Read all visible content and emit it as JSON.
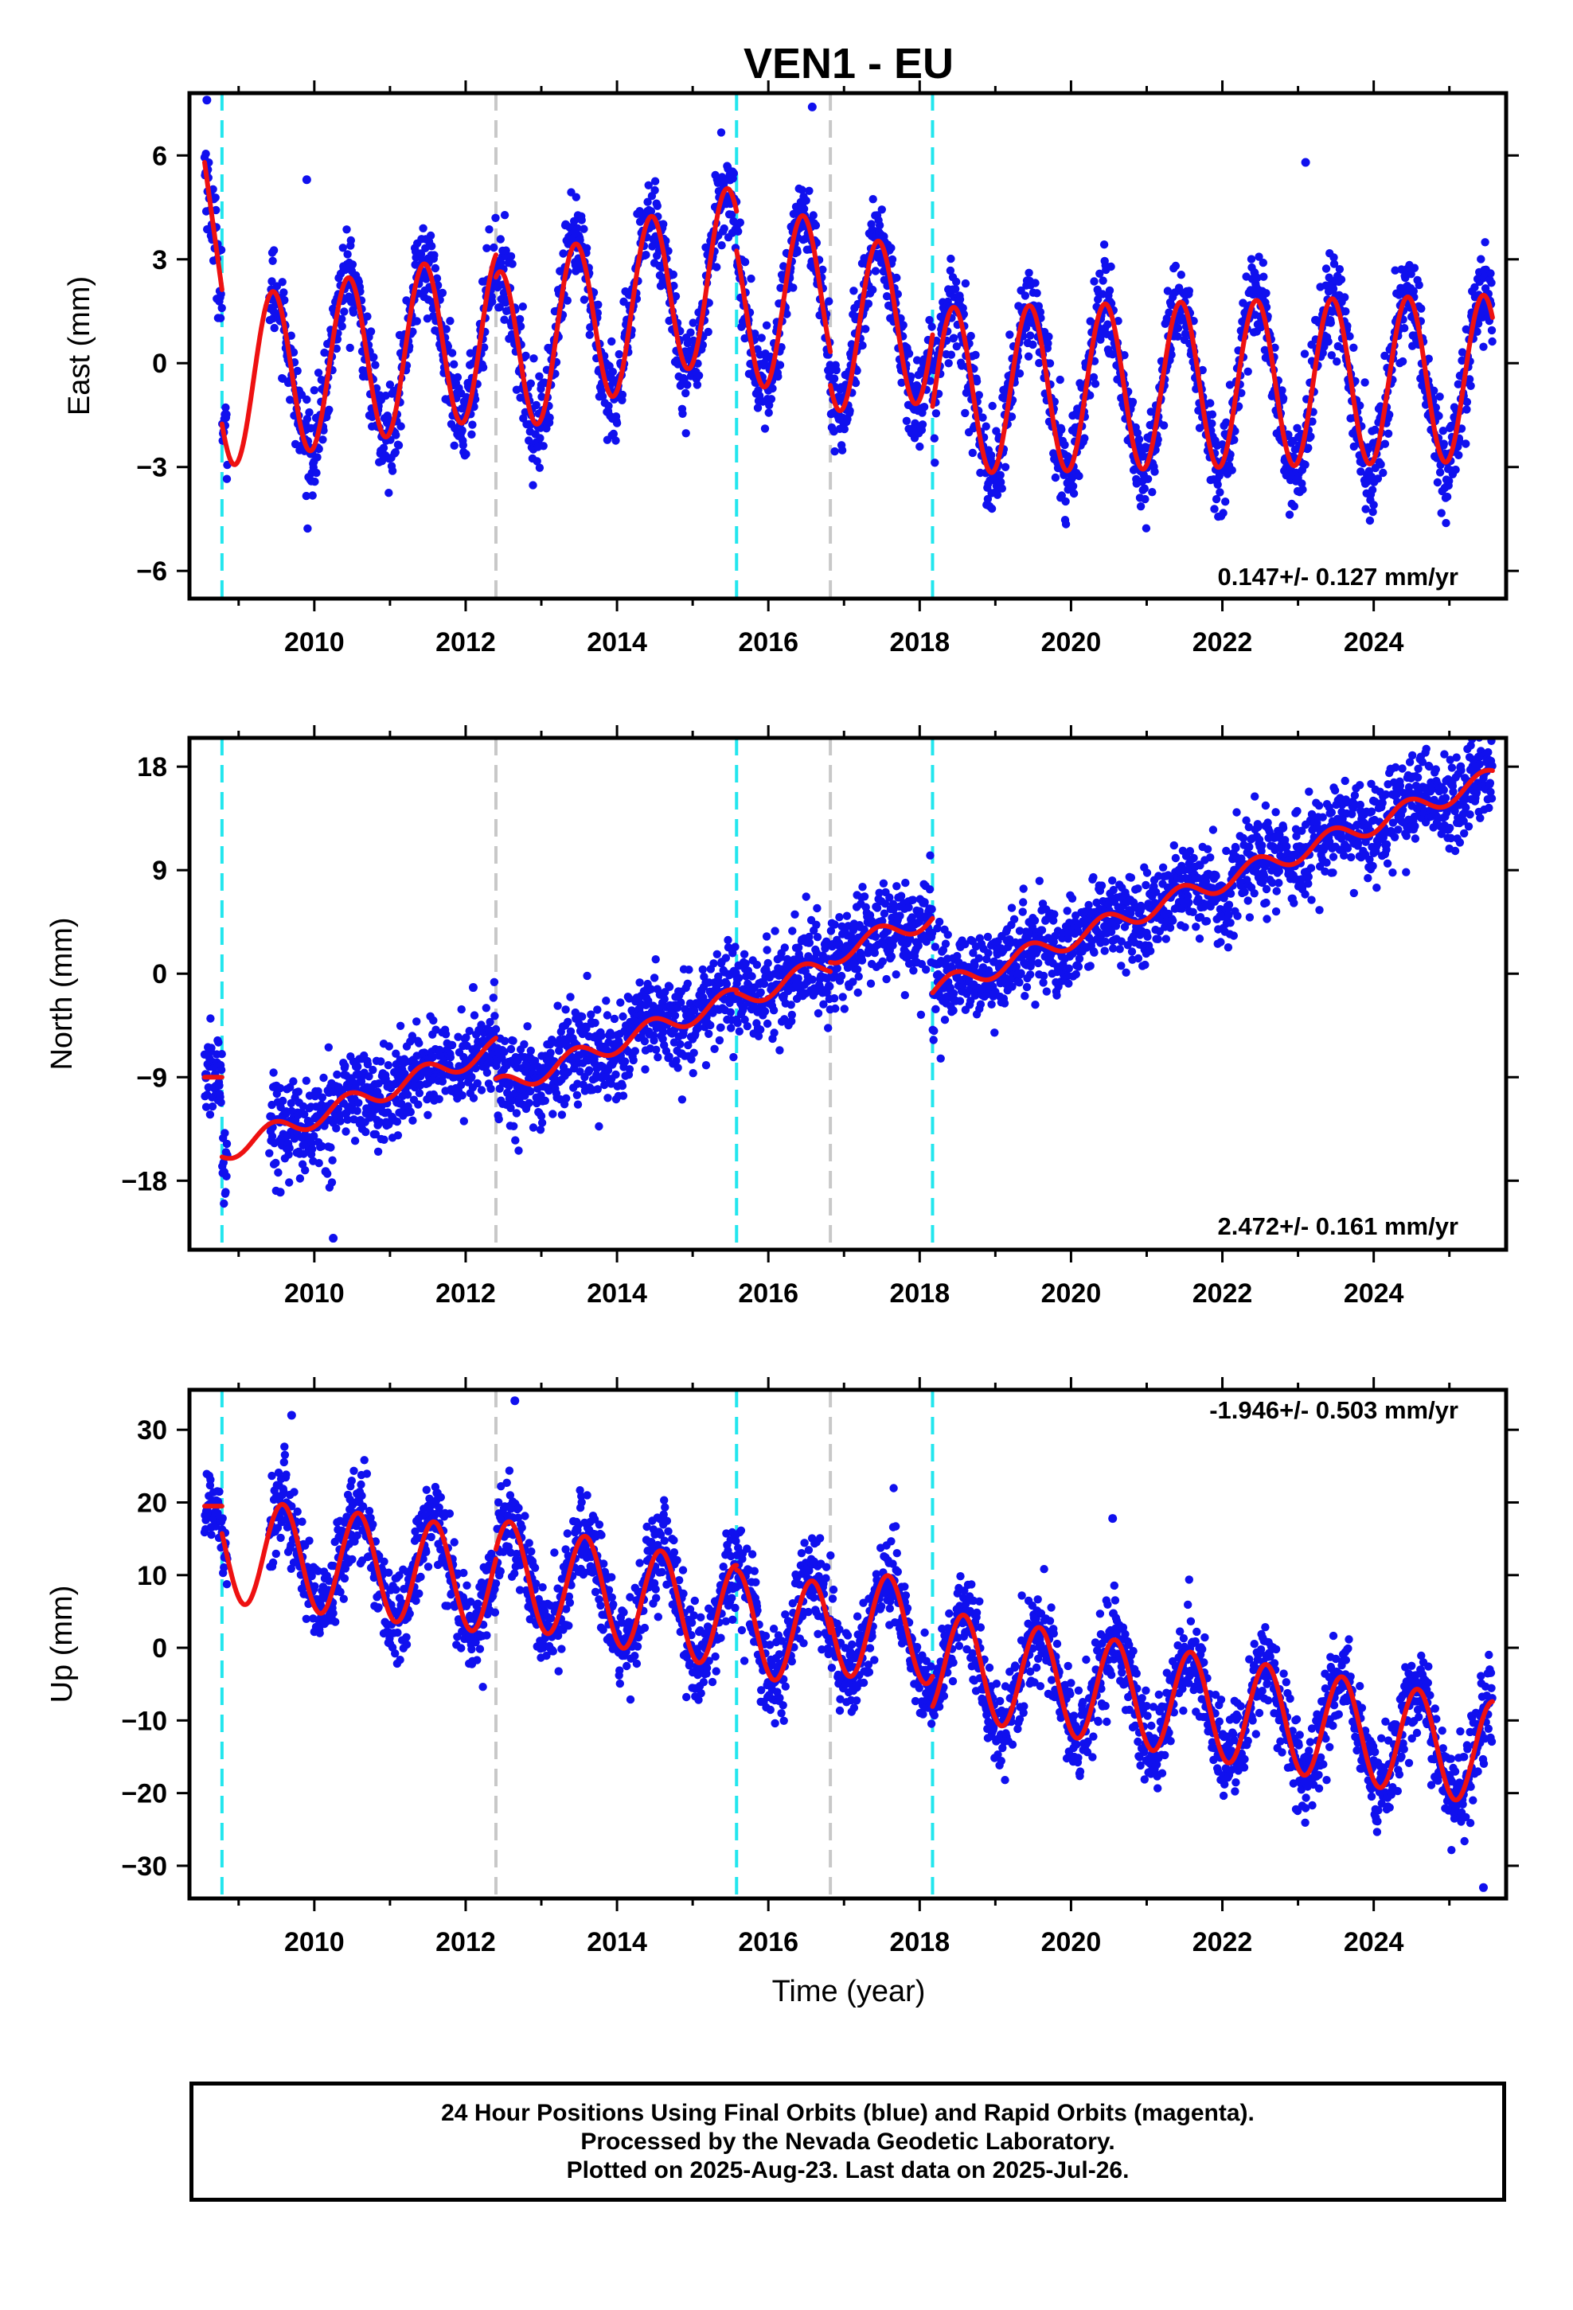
{
  "title": "VEN1 - EU",
  "xlabel": "Time (year)",
  "footer": {
    "line1": "24 Hour Positions Using Final Orbits (blue) and Rapid Orbits (magenta).",
    "line2": "Processed by the Nevada Geodetic Laboratory.",
    "line3": "Plotted on 2025-Aug-23. Last data on 2025-Jul-26."
  },
  "colors": {
    "points": "#1010ee",
    "model": "#ee1111",
    "equipment_change": "#22e6ee",
    "other_event": "#c8c8c8"
  },
  "chart_data": [
    {
      "type": "scatter",
      "ylabel": "East (mm)",
      "xlim": [
        2008.35,
        2025.75
      ],
      "ylim": [
        -6.8,
        7.8
      ],
      "yticks": [
        6,
        3,
        0,
        -3,
        -6
      ],
      "ytick_labels": [
        "6",
        "3",
        "0",
        "−3",
        "−6"
      ],
      "xticks": [
        2010,
        2012,
        2014,
        2016,
        2018,
        2020,
        2022,
        2024
      ],
      "xtick_labels": [
        "2010",
        "2012",
        "2014",
        "2016",
        "2018",
        "2020",
        "2022",
        "2024"
      ],
      "rate_label": "0.147+/- 0.127 mm/yr",
      "rate_position": "bottom-right",
      "data_start": 2008.55,
      "data_end": 2025.57,
      "model": {
        "trend": 0.147,
        "amplitude": 2.4,
        "peak_phase": 0.45,
        "segments": [
          {
            "start": 2008.55,
            "end": 2008.78,
            "offset": 5.8,
            "slope": -16.0
          },
          {
            "start": 2008.78,
            "end": 2012.4,
            "offset": -0.6,
            "slope": 0.4
          },
          {
            "start": 2012.4,
            "end": 2015.58,
            "offset": 0.2,
            "slope": 0.8
          },
          {
            "start": 2015.58,
            "end": 2016.82,
            "offset": 1.6,
            "slope": 0.3
          },
          {
            "start": 2016.82,
            "end": 2018.17,
            "offset": 1.0,
            "slope": 0.2
          },
          {
            "start": 2018.17,
            "end": 2025.57,
            "offset": -0.8,
            "slope": 0.05
          }
        ]
      },
      "outliers": [
        [
          2008.58,
          7.6
        ],
        [
          2016.58,
          7.4
        ],
        [
          2023.1,
          5.8
        ],
        [
          2009.9,
          5.3
        ]
      ],
      "events": [
        {
          "year": 2008.78,
          "kind": "equipment_change"
        },
        {
          "year": 2012.4,
          "kind": "other_event"
        },
        {
          "year": 2015.58,
          "kind": "equipment_change"
        },
        {
          "year": 2016.82,
          "kind": "other_event"
        },
        {
          "year": 2018.17,
          "kind": "equipment_change"
        }
      ]
    },
    {
      "type": "scatter",
      "ylabel": "North (mm)",
      "xlim": [
        2008.35,
        2025.75
      ],
      "ylim": [
        -24,
        20.5
      ],
      "yticks": [
        18,
        9,
        0,
        -9,
        -18
      ],
      "ytick_labels": [
        "18",
        "9",
        "0",
        "−9",
        "−18"
      ],
      "xticks": [
        2010,
        2012,
        2014,
        2016,
        2018,
        2020,
        2022,
        2024
      ],
      "xtick_labels": [
        "2010",
        "2012",
        "2014",
        "2016",
        "2018",
        "2020",
        "2022",
        "2024"
      ],
      "rate_label": "2.472+/- 0.161 mm/yr",
      "rate_position": "bottom-right",
      "data_start": 2008.55,
      "data_end": 2025.57,
      "model": {
        "trend": 2.472,
        "amplitude": 0.9,
        "peak_phase": 0.45,
        "segments": [
          {
            "start": 2008.55,
            "end": 2008.78,
            "offset": -9.0,
            "slope": 0.0
          },
          {
            "start": 2008.78,
            "end": 2012.4,
            "offset": -15.5,
            "slope": 2.5
          },
          {
            "start": 2012.4,
            "end": 2015.58,
            "offset": -10.0,
            "slope": 2.5
          },
          {
            "start": 2015.58,
            "end": 2016.82,
            "offset": -2.3,
            "slope": 2.5
          },
          {
            "start": 2016.82,
            "end": 2018.17,
            "offset": 1.6,
            "slope": 2.5
          },
          {
            "start": 2018.17,
            "end": 2025.57,
            "offset": -1.5,
            "slope": 2.5
          }
        ]
      },
      "outliers": [
        [
          2010.15,
          -17.2
        ],
        [
          2010.25,
          -23.0
        ],
        [
          2012.1,
          -1.2
        ],
        [
          2009.55,
          -19.0
        ]
      ],
      "events": [
        {
          "year": 2008.78,
          "kind": "equipment_change"
        },
        {
          "year": 2012.4,
          "kind": "other_event"
        },
        {
          "year": 2015.58,
          "kind": "equipment_change"
        },
        {
          "year": 2016.82,
          "kind": "other_event"
        },
        {
          "year": 2018.17,
          "kind": "equipment_change"
        }
      ]
    },
    {
      "type": "scatter",
      "ylabel": "Up (mm)",
      "xlim": [
        2008.35,
        2025.75
      ],
      "ylim": [
        -34.5,
        35.5
      ],
      "yticks": [
        30,
        20,
        10,
        0,
        -10,
        -20,
        -30
      ],
      "ytick_labels": [
        "30",
        "20",
        "10",
        "0",
        "−10",
        "−20",
        "−30"
      ],
      "xticks": [
        2010,
        2012,
        2014,
        2016,
        2018,
        2020,
        2022,
        2024
      ],
      "xtick_labels": [
        "2010",
        "2012",
        "2014",
        "2016",
        "2018",
        "2020",
        "2022",
        "2024"
      ],
      "rate_label": "-1.946+/- 0.503 mm/yr",
      "rate_position": "top-right",
      "data_start": 2008.55,
      "data_end": 2025.57,
      "model": {
        "trend": -1.946,
        "amplitude": 7.2,
        "peak_phase": 0.58,
        "segments": [
          {
            "start": 2008.55,
            "end": 2008.78,
            "offset": 19.5,
            "slope": 0.0
          },
          {
            "start": 2008.78,
            "end": 2012.4,
            "offset": 13.5,
            "slope": -1.2
          },
          {
            "start": 2012.4,
            "end": 2015.58,
            "offset": 10.5,
            "slope": -2.0
          },
          {
            "start": 2015.58,
            "end": 2016.82,
            "offset": 3.5,
            "slope": -1.5
          },
          {
            "start": 2016.82,
            "end": 2018.17,
            "offset": 3.5,
            "slope": -1.0
          },
          {
            "start": 2018.17,
            "end": 2025.57,
            "offset": -2.0,
            "slope": -1.7
          }
        ]
      },
      "outliers": [
        [
          2012.65,
          34.0
        ],
        [
          2009.7,
          32.0
        ],
        [
          2020.55,
          17.8
        ],
        [
          2025.45,
          -33.0
        ]
      ],
      "events": [
        {
          "year": 2008.78,
          "kind": "equipment_change"
        },
        {
          "year": 2012.4,
          "kind": "other_event"
        },
        {
          "year": 2015.58,
          "kind": "equipment_change"
        },
        {
          "year": 2016.82,
          "kind": "other_event"
        },
        {
          "year": 2018.17,
          "kind": "equipment_change"
        }
      ]
    }
  ]
}
